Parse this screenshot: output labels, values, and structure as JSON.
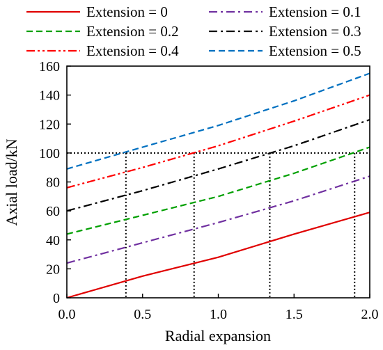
{
  "chart_data": {
    "type": "line",
    "xlabel": "Radial expansion",
    "ylabel": "Axial load/kN",
    "xlim": [
      0.0,
      2.0
    ],
    "ylim": [
      0,
      160
    ],
    "xticks": [
      "0.0",
      "0.5",
      "1.0",
      "1.5",
      "2.0"
    ],
    "yticks": [
      "0",
      "20",
      "40",
      "60",
      "80",
      "100",
      "120",
      "140",
      "160"
    ],
    "legend_position": "top",
    "series": [
      {
        "name": "Extension = 0",
        "color": "#e00000",
        "dash": "solid",
        "points": [
          [
            0,
            0
          ],
          [
            0.5,
            15
          ],
          [
            1.0,
            28
          ],
          [
            1.5,
            44
          ],
          [
            2.0,
            59
          ]
        ]
      },
      {
        "name": "Extension = 0.1",
        "color": "#7030a0",
        "dash": "dashdot",
        "points": [
          [
            0,
            24
          ],
          [
            0.5,
            38
          ],
          [
            1.0,
            52
          ],
          [
            1.5,
            67
          ],
          [
            2.0,
            84
          ]
        ]
      },
      {
        "name": "Extension = 0.2",
        "color": "#00a000",
        "dash": "dashed",
        "points": [
          [
            0,
            44
          ],
          [
            0.5,
            57
          ],
          [
            1.0,
            70
          ],
          [
            1.5,
            86
          ],
          [
            2.0,
            104
          ]
        ]
      },
      {
        "name": "Extension = 0.3",
        "color": "#000000",
        "dash": "dashdot",
        "points": [
          [
            0,
            60
          ],
          [
            0.5,
            74
          ],
          [
            1.0,
            89
          ],
          [
            1.5,
            105
          ],
          [
            2.0,
            123
          ]
        ]
      },
      {
        "name": "Extension = 0.4",
        "color": "#ff0000",
        "dash": "dashdotdot",
        "points": [
          [
            0,
            76
          ],
          [
            0.5,
            90
          ],
          [
            1.0,
            105
          ],
          [
            1.5,
            122
          ],
          [
            2.0,
            140
          ]
        ]
      },
      {
        "name": "Extension = 0.5",
        "color": "#0070c0",
        "dash": "dashed",
        "points": [
          [
            0,
            89
          ],
          [
            0.5,
            104
          ],
          [
            1.0,
            119
          ],
          [
            1.5,
            136
          ],
          [
            2.0,
            155
          ]
        ]
      }
    ],
    "reference_line": {
      "y": 100,
      "style": "dotted",
      "color": "#000000"
    },
    "drop_lines_x": [
      0.39,
      0.84,
      1.34,
      1.9
    ]
  }
}
